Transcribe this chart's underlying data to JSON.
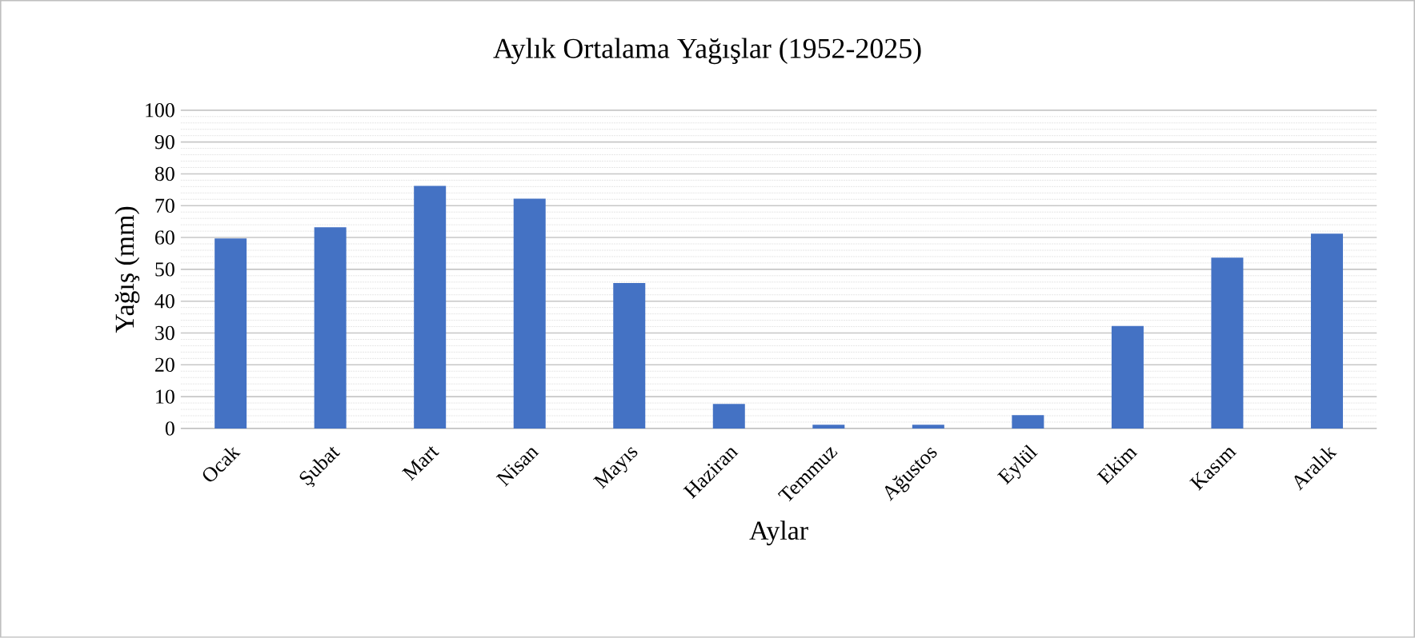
{
  "chart_data": {
    "type": "bar",
    "title": "Aylık Ortalama Yağışlar (1952-2025)",
    "xlabel": "Aylar",
    "ylabel": "Yağış (mm)",
    "categories": [
      "Ocak",
      "Şubat",
      "Mart",
      "Nisan",
      "Mayıs",
      "Haziran",
      "Temmuz",
      "Ağustos",
      "Eylül",
      "Ekim",
      "Kasım",
      "Aralık"
    ],
    "values": [
      59.7,
      63.2,
      76.2,
      72.2,
      45.7,
      7.7,
      1.2,
      1.2,
      4.2,
      32.2,
      53.7,
      61.2
    ],
    "color": "#4472c4",
    "ylim": [
      0,
      100
    ],
    "yticks": [
      0,
      10,
      20,
      30,
      40,
      50,
      60,
      70,
      80,
      90,
      100
    ],
    "grid": "y"
  }
}
